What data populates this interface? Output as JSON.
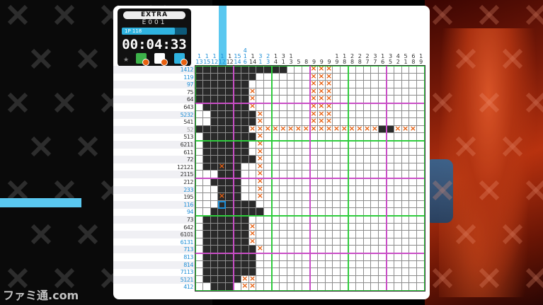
{
  "header": {
    "mode": "EXTRA",
    "puzzle_code": "E001",
    "progress_label": "1P 118",
    "progress_fraction": 0.82,
    "timer": "00:04:33"
  },
  "tools": [
    {
      "name": "fill-tool-icon",
      "color": "#3db34a"
    },
    {
      "name": "hint-tool-icon",
      "color": "#ffffff"
    },
    {
      "name": "number-tool-icon",
      "color": "#2fb3e0"
    }
  ],
  "row_clues": [
    {
      "text": "1412",
      "style": "blue"
    },
    {
      "text": "119",
      "style": "blue"
    },
    {
      "text": "97",
      "style": "blue"
    },
    {
      "text": "75",
      "style": "normal"
    },
    {
      "text": "64",
      "style": "normal"
    },
    {
      "text": "643",
      "style": "normal"
    },
    {
      "text": "5232",
      "style": "blue"
    },
    {
      "text": "541",
      "style": "normal"
    },
    {
      "text": "52",
      "style": "done"
    },
    {
      "text": "513",
      "style": "normal"
    },
    {
      "text": "6211",
      "style": "normal"
    },
    {
      "text": "611",
      "style": "normal"
    },
    {
      "text": "72",
      "style": "normal"
    },
    {
      "text": "12121",
      "style": "normal"
    },
    {
      "text": "2115",
      "style": "normal"
    },
    {
      "text": "212",
      "style": "normal"
    },
    {
      "text": "233",
      "style": "blue"
    },
    {
      "text": "195",
      "style": "normal"
    },
    {
      "text": "116",
      "style": "blue"
    },
    {
      "text": "94",
      "style": "blue"
    },
    {
      "text": "73",
      "style": "normal"
    },
    {
      "text": "642",
      "style": "normal"
    },
    {
      "text": "6101",
      "style": "normal"
    },
    {
      "text": "6131",
      "style": "blue"
    },
    {
      "text": "713",
      "style": "blue"
    },
    {
      "text": "813",
      "style": "blue"
    },
    {
      "text": "814",
      "style": "blue"
    },
    {
      "text": "7113",
      "style": "blue"
    },
    {
      "text": "5121",
      "style": "blue"
    },
    {
      "text": "412",
      "style": "blue"
    }
  ],
  "col_clues": [
    {
      "text": "1\n13",
      "style": "blue"
    },
    {
      "text": "1\n15",
      "style": "blue"
    },
    {
      "text": "1\n12",
      "style": "blue"
    },
    {
      "text": "1\n12",
      "style": "blue"
    },
    {
      "text": "1\n12",
      "style": "normal"
    },
    {
      "text": "15\n14",
      "style": "blue"
    },
    {
      "text": "4\n1\n6",
      "style": "blue"
    },
    {
      "text": "1\n14",
      "style": "normal"
    },
    {
      "text": "3\n1",
      "style": "blue"
    },
    {
      "text": "2\n3",
      "style": "blue"
    },
    {
      "text": "1\n4",
      "style": "normal"
    },
    {
      "text": "3\n1",
      "style": "normal"
    },
    {
      "text": "1\n3",
      "style": "normal"
    },
    {
      "text": "5",
      "style": "normal"
    },
    {
      "text": "8",
      "style": "normal"
    },
    {
      "text": "9",
      "style": "normal"
    },
    {
      "text": "9",
      "style": "normal"
    },
    {
      "text": "9",
      "style": "normal"
    },
    {
      "text": "1\n9",
      "style": "normal"
    },
    {
      "text": "1\n8",
      "style": "normal"
    },
    {
      "text": "2\n8",
      "style": "normal"
    },
    {
      "text": "2\n8",
      "style": "normal"
    },
    {
      "text": "2\n7",
      "style": "normal"
    },
    {
      "text": "3\n7",
      "style": "normal"
    },
    {
      "text": "1\n6",
      "style": "normal"
    },
    {
      "text": "3\n5",
      "style": "normal"
    },
    {
      "text": "4\n2",
      "style": "normal"
    },
    {
      "text": "5\n1",
      "style": "normal"
    },
    {
      "text": "6\n8",
      "style": "normal"
    },
    {
      "text": "1\n9",
      "style": "normal"
    }
  ],
  "grid_size": 30,
  "filled": [
    [
      0,
      0
    ],
    [
      0,
      1
    ],
    [
      0,
      2
    ],
    [
      0,
      3
    ],
    [
      0,
      4
    ],
    [
      0,
      5
    ],
    [
      0,
      6
    ],
    [
      0,
      7
    ],
    [
      0,
      8
    ],
    [
      0,
      9
    ],
    [
      0,
      10
    ],
    [
      0,
      11
    ],
    [
      1,
      0
    ],
    [
      1,
      1
    ],
    [
      1,
      2
    ],
    [
      1,
      3
    ],
    [
      1,
      4
    ],
    [
      1,
      5
    ],
    [
      1,
      6
    ],
    [
      1,
      7
    ],
    [
      2,
      0
    ],
    [
      2,
      1
    ],
    [
      2,
      2
    ],
    [
      2,
      3
    ],
    [
      2,
      4
    ],
    [
      2,
      5
    ],
    [
      2,
      6
    ],
    [
      3,
      0
    ],
    [
      3,
      1
    ],
    [
      3,
      2
    ],
    [
      3,
      3
    ],
    [
      3,
      4
    ],
    [
      3,
      5
    ],
    [
      3,
      6
    ],
    [
      4,
      0
    ],
    [
      4,
      1
    ],
    [
      4,
      2
    ],
    [
      4,
      3
    ],
    [
      4,
      4
    ],
    [
      4,
      5
    ],
    [
      4,
      6
    ],
    [
      5,
      1
    ],
    [
      5,
      2
    ],
    [
      5,
      3
    ],
    [
      5,
      4
    ],
    [
      5,
      5
    ],
    [
      5,
      6
    ],
    [
      6,
      2
    ],
    [
      6,
      3
    ],
    [
      6,
      4
    ],
    [
      6,
      5
    ],
    [
      6,
      6
    ],
    [
      6,
      7
    ],
    [
      7,
      2
    ],
    [
      7,
      3
    ],
    [
      7,
      4
    ],
    [
      7,
      5
    ],
    [
      7,
      6
    ],
    [
      7,
      7
    ],
    [
      8,
      0
    ],
    [
      8,
      1
    ],
    [
      8,
      2
    ],
    [
      8,
      3
    ],
    [
      8,
      4
    ],
    [
      8,
      5
    ],
    [
      8,
      6
    ],
    [
      8,
      24
    ],
    [
      8,
      25
    ],
    [
      9,
      1
    ],
    [
      9,
      2
    ],
    [
      9,
      3
    ],
    [
      9,
      4
    ],
    [
      9,
      5
    ],
    [
      9,
      6
    ],
    [
      9,
      7
    ],
    [
      10,
      1
    ],
    [
      10,
      2
    ],
    [
      10,
      3
    ],
    [
      10,
      4
    ],
    [
      10,
      5
    ],
    [
      10,
      6
    ],
    [
      11,
      1
    ],
    [
      11,
      2
    ],
    [
      11,
      3
    ],
    [
      11,
      4
    ],
    [
      11,
      5
    ],
    [
      11,
      6
    ],
    [
      12,
      1
    ],
    [
      12,
      2
    ],
    [
      12,
      3
    ],
    [
      12,
      4
    ],
    [
      12,
      5
    ],
    [
      12,
      6
    ],
    [
      12,
      7
    ],
    [
      13,
      1
    ],
    [
      13,
      2
    ],
    [
      13,
      3
    ],
    [
      13,
      4
    ],
    [
      13,
      5
    ],
    [
      14,
      3
    ],
    [
      14,
      4
    ],
    [
      14,
      5
    ],
    [
      15,
      2
    ],
    [
      15,
      3
    ],
    [
      15,
      4
    ],
    [
      15,
      5
    ],
    [
      16,
      3
    ],
    [
      16,
      4
    ],
    [
      16,
      5
    ],
    [
      17,
      3
    ],
    [
      17,
      4
    ],
    [
      17,
      5
    ],
    [
      18,
      3
    ],
    [
      18,
      4
    ],
    [
      18,
      5
    ],
    [
      18,
      6
    ],
    [
      18,
      7
    ],
    [
      19,
      2
    ],
    [
      19,
      3
    ],
    [
      19,
      4
    ],
    [
      19,
      5
    ],
    [
      19,
      6
    ],
    [
      19,
      7
    ],
    [
      19,
      8
    ],
    [
      20,
      1
    ],
    [
      20,
      2
    ],
    [
      20,
      3
    ],
    [
      20,
      4
    ],
    [
      20,
      5
    ],
    [
      20,
      6
    ],
    [
      21,
      1
    ],
    [
      21,
      2
    ],
    [
      21,
      3
    ],
    [
      21,
      4
    ],
    [
      21,
      5
    ],
    [
      21,
      6
    ],
    [
      22,
      1
    ],
    [
      22,
      2
    ],
    [
      22,
      3
    ],
    [
      22,
      4
    ],
    [
      22,
      5
    ],
    [
      22,
      6
    ],
    [
      23,
      1
    ],
    [
      23,
      2
    ],
    [
      23,
      3
    ],
    [
      23,
      4
    ],
    [
      23,
      5
    ],
    [
      23,
      6
    ],
    [
      24,
      1
    ],
    [
      24,
      2
    ],
    [
      24,
      3
    ],
    [
      24,
      4
    ],
    [
      24,
      5
    ],
    [
      24,
      6
    ],
    [
      24,
      7
    ],
    [
      25,
      1
    ],
    [
      25,
      2
    ],
    [
      25,
      3
    ],
    [
      25,
      4
    ],
    [
      25,
      5
    ],
    [
      25,
      6
    ],
    [
      25,
      7
    ],
    [
      26,
      1
    ],
    [
      26,
      2
    ],
    [
      26,
      3
    ],
    [
      26,
      4
    ],
    [
      26,
      5
    ],
    [
      26,
      6
    ],
    [
      26,
      7
    ],
    [
      27,
      1
    ],
    [
      27,
      2
    ],
    [
      27,
      3
    ],
    [
      27,
      4
    ],
    [
      27,
      5
    ],
    [
      27,
      6
    ],
    [
      27,
      7
    ],
    [
      28,
      1
    ],
    [
      28,
      2
    ],
    [
      28,
      3
    ],
    [
      28,
      4
    ],
    [
      28,
      5
    ],
    [
      29,
      2
    ],
    [
      29,
      3
    ],
    [
      29,
      4
    ]
  ],
  "crosses": [
    [
      0,
      15
    ],
    [
      0,
      16
    ],
    [
      0,
      17
    ],
    [
      1,
      15
    ],
    [
      1,
      16
    ],
    [
      1,
      17
    ],
    [
      2,
      15
    ],
    [
      2,
      16
    ],
    [
      2,
      17
    ],
    [
      3,
      15
    ],
    [
      3,
      16
    ],
    [
      3,
      17
    ],
    [
      4,
      15
    ],
    [
      4,
      16
    ],
    [
      4,
      17
    ],
    [
      5,
      15
    ],
    [
      5,
      16
    ],
    [
      5,
      17
    ],
    [
      6,
      15
    ],
    [
      6,
      16
    ],
    [
      6,
      17
    ],
    [
      7,
      15
    ],
    [
      7,
      16
    ],
    [
      7,
      17
    ],
    [
      3,
      7
    ],
    [
      4,
      7
    ],
    [
      5,
      7
    ],
    [
      6,
      8
    ],
    [
      7,
      8
    ],
    [
      8,
      7
    ],
    [
      8,
      8
    ],
    [
      8,
      9
    ],
    [
      8,
      10
    ],
    [
      8,
      11
    ],
    [
      8,
      12
    ],
    [
      8,
      13
    ],
    [
      8,
      14
    ],
    [
      8,
      15
    ],
    [
      8,
      16
    ],
    [
      8,
      17
    ],
    [
      8,
      18
    ],
    [
      8,
      19
    ],
    [
      8,
      20
    ],
    [
      8,
      21
    ],
    [
      8,
      22
    ],
    [
      8,
      23
    ],
    [
      8,
      26
    ],
    [
      8,
      27
    ],
    [
      8,
      28
    ],
    [
      9,
      8
    ],
    [
      10,
      8
    ],
    [
      11,
      8
    ],
    [
      12,
      8
    ],
    [
      13,
      8
    ],
    [
      14,
      8
    ],
    [
      15,
      8
    ],
    [
      16,
      8
    ],
    [
      17,
      8
    ],
    [
      13,
      3
    ],
    [
      17,
      3
    ],
    [
      21,
      7
    ],
    [
      22,
      7
    ],
    [
      23,
      7
    ],
    [
      24,
      8
    ],
    [
      28,
      6
    ],
    [
      28,
      7
    ],
    [
      29,
      6
    ],
    [
      29,
      7
    ]
  ],
  "cursor": {
    "row": 18,
    "col": 3
  },
  "watermark": "ファミ通.com"
}
